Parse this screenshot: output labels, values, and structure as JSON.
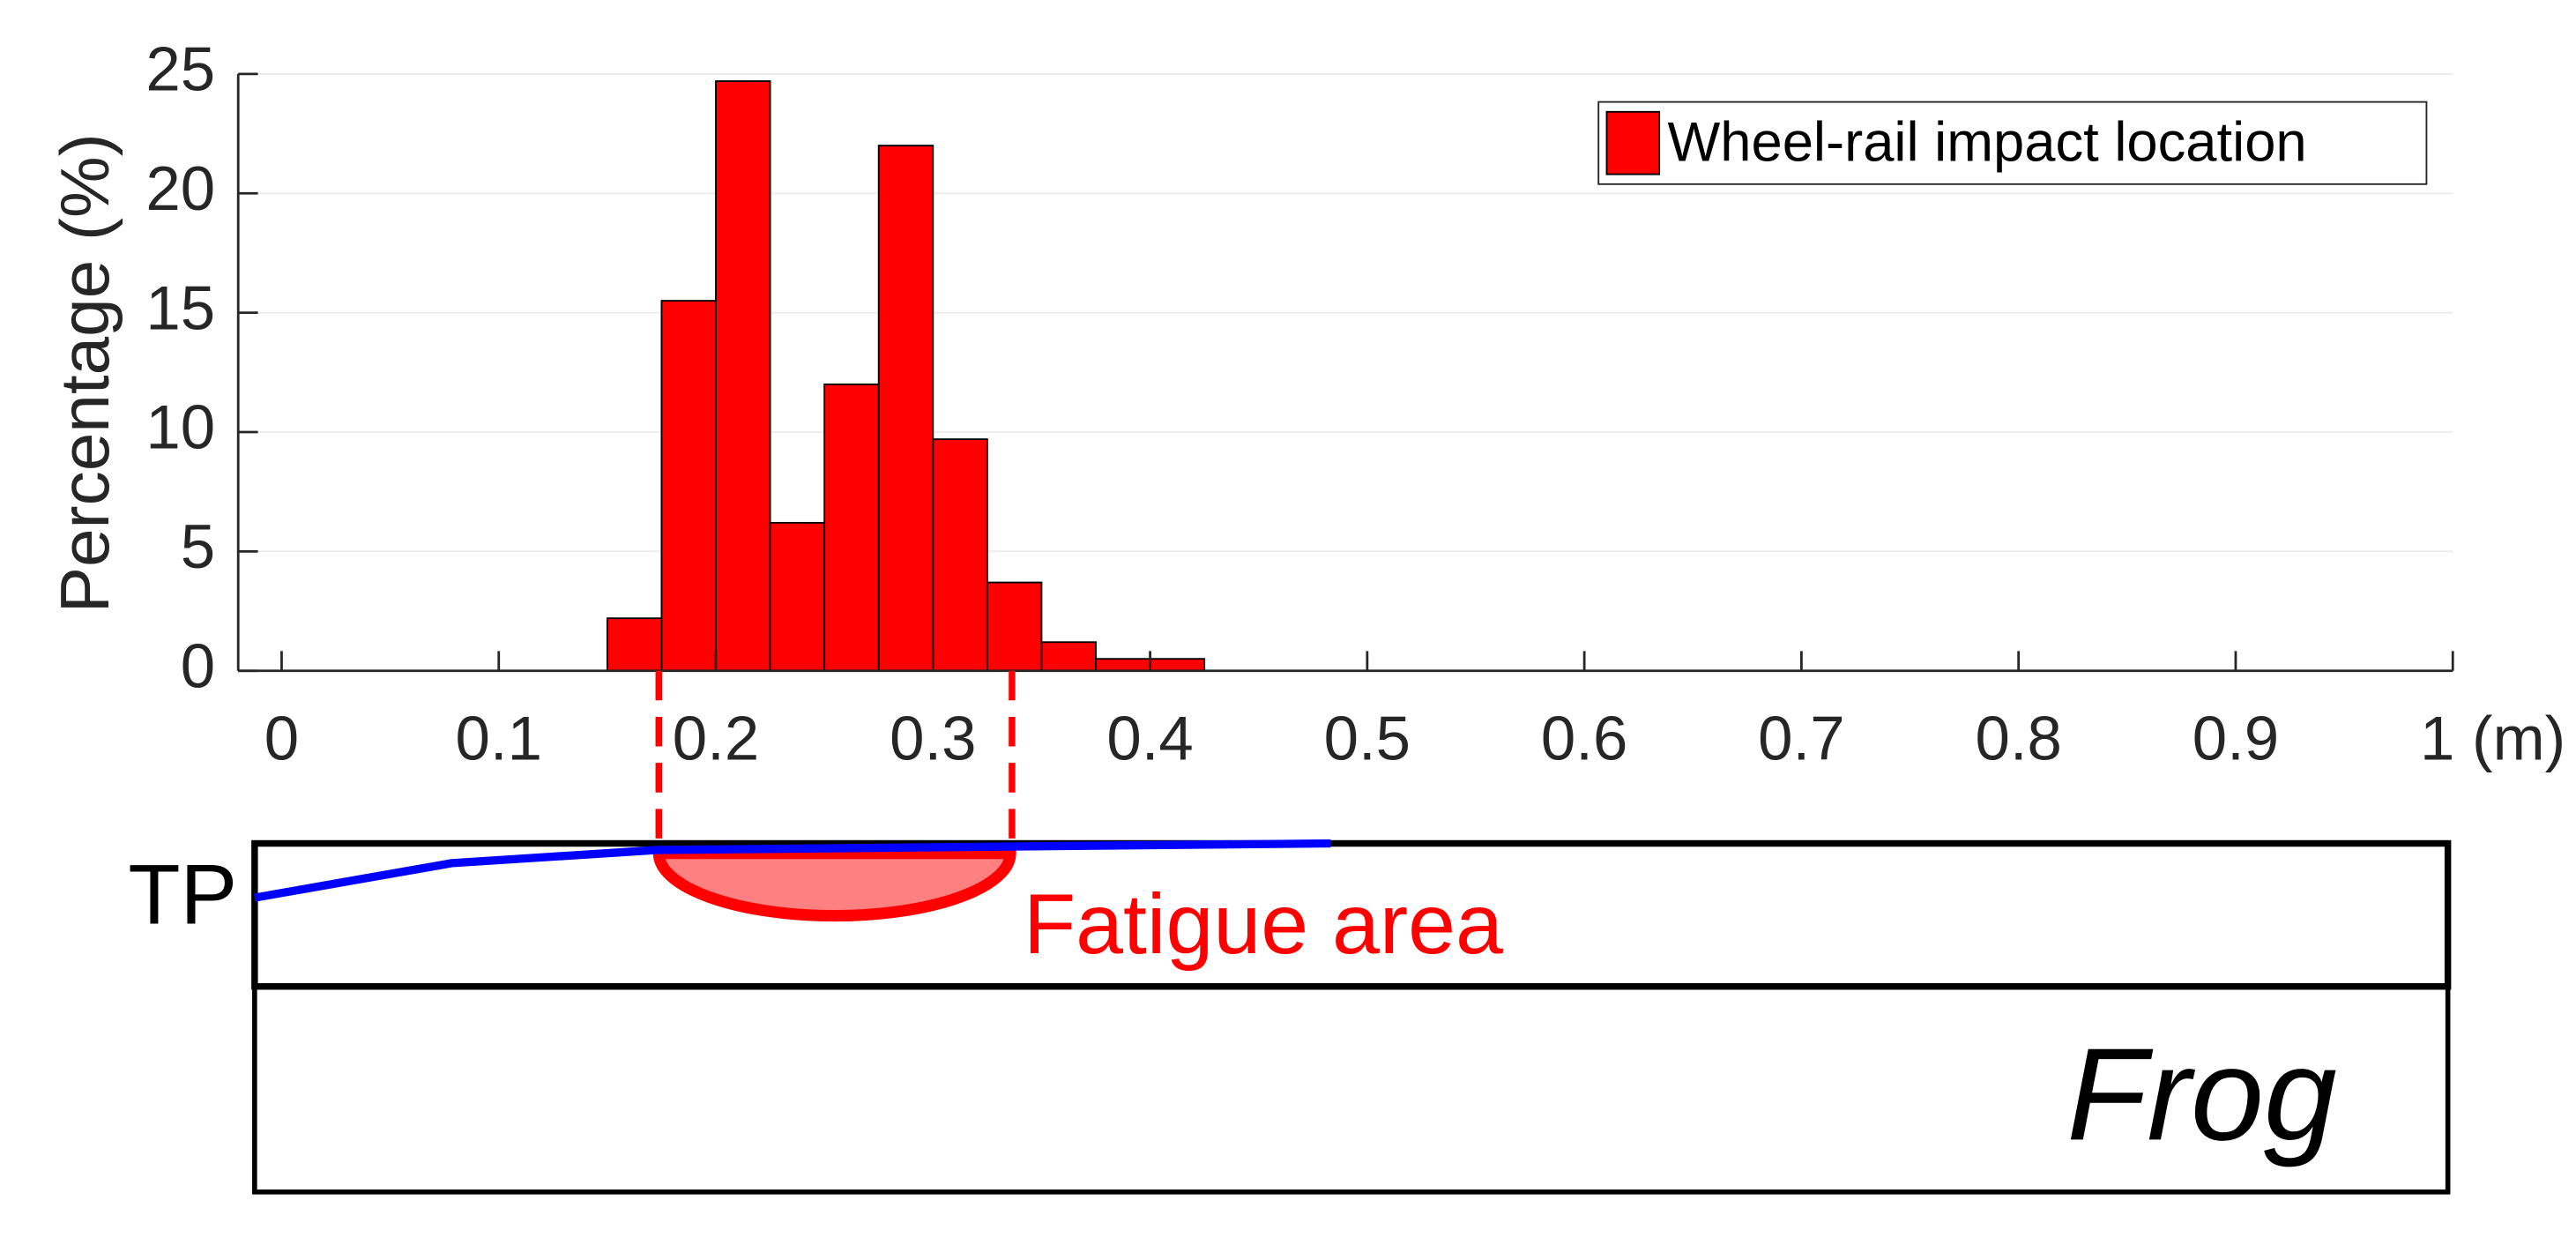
{
  "chart_data": {
    "type": "histogram",
    "ylabel": "Percentage (%)",
    "bins": [
      0.15,
      0.175,
      0.2,
      0.225,
      0.25,
      0.275,
      0.3,
      0.325,
      0.35,
      0.375,
      0.4,
      0.425
    ],
    "series": [
      {
        "name": "Wheel-rail impact location",
        "color": "#ff0000",
        "values": [
          2.2,
          15.5,
          24.7,
          6.2,
          12,
          22,
          9.7,
          3.7,
          1.2,
          0.5,
          0.5
        ]
      }
    ],
    "xlim": [
      -0.02,
      1
    ],
    "xticks": [
      0,
      0.1,
      0.2,
      0.3,
      0.4,
      0.5,
      0.6,
      0.7,
      0.8,
      0.9,
      {
        "value": 1,
        "label": "1 (m)"
      }
    ],
    "ylim": [
      0,
      25
    ],
    "yticks": [
      0,
      5,
      10,
      15,
      20,
      25
    ],
    "grid": true,
    "legend": "upper right"
  },
  "diagram": {
    "tp_label": "TP",
    "fatigue_label": "Fatigue area",
    "frog_label": "Frog"
  }
}
